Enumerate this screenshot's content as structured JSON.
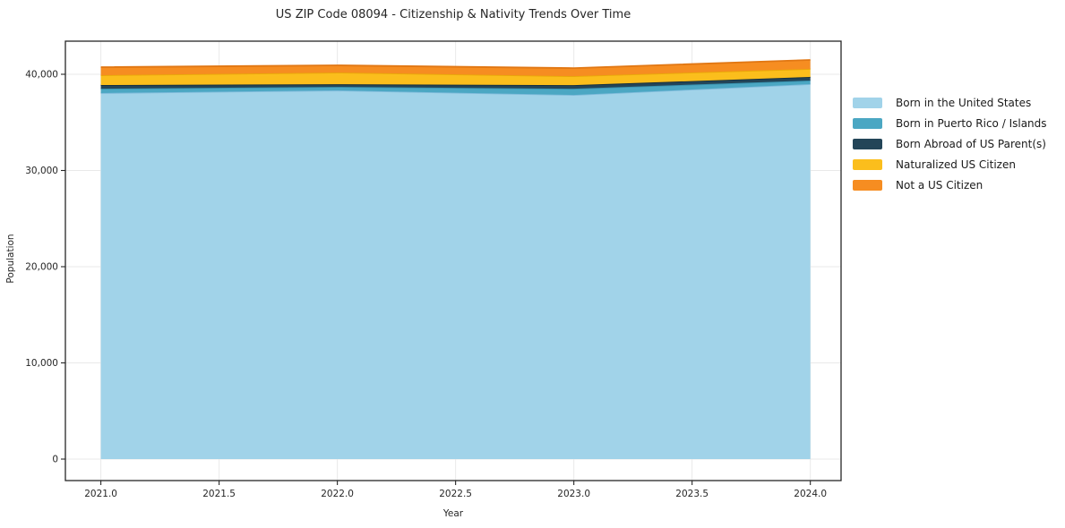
{
  "chart_data": {
    "type": "area",
    "stacked": true,
    "title": "US ZIP Code 08094 - Citizenship & Nativity Trends Over Time",
    "xlabel": "Year",
    "ylabel": "Population",
    "x": [
      2021,
      2022,
      2023,
      2024
    ],
    "series": [
      {
        "name": "Born in the United States",
        "color": "#A1D3E9",
        "edge_color": "#7FBBDB",
        "values": [
          38050,
          38320,
          37850,
          38980
        ]
      },
      {
        "name": "Born in Puerto Rico / Islands",
        "color": "#4BA7C3",
        "edge_color": "#3892AF",
        "values": [
          450,
          370,
          650,
          370
        ]
      },
      {
        "name": "Born Abroad of US Parent(s)",
        "color": "#234558",
        "edge_color": "#152F3E",
        "values": [
          380,
          280,
          370,
          370
        ]
      },
      {
        "name": "Naturalized US Citizen",
        "color": "#FBBE1C",
        "edge_color": "#E9A908",
        "values": [
          1020,
          1210,
          930,
          840
        ]
      },
      {
        "name": "Not a US Citizen",
        "color": "#F68D21",
        "edge_color": "#E17713",
        "values": [
          840,
          750,
          840,
          930
        ]
      }
    ],
    "totals": [
      40740,
      40930,
      40640,
      41490
    ],
    "xlim": [
      2020.85,
      2024.13
    ],
    "ylim": [
      -2233,
      43442
    ],
    "xticks": [
      2021.0,
      2021.5,
      2022.0,
      2022.5,
      2023.0,
      2023.5,
      2024.0
    ],
    "x_tick_labels": [
      "2021.0",
      "2021.5",
      "2022.0",
      "2022.5",
      "2023.0",
      "2023.5",
      "2024.0"
    ],
    "yticks": [
      0,
      10000,
      20000,
      30000,
      40000
    ],
    "y_tick_labels": [
      "0",
      "10,000",
      "20,000",
      "30,000",
      "40,000"
    ],
    "grid": true,
    "legend_position": "right-outside",
    "background_color": "#ffffff",
    "grid_color": "#e9e9e9",
    "spine_color": "#262626",
    "text_color": "#262626"
  }
}
